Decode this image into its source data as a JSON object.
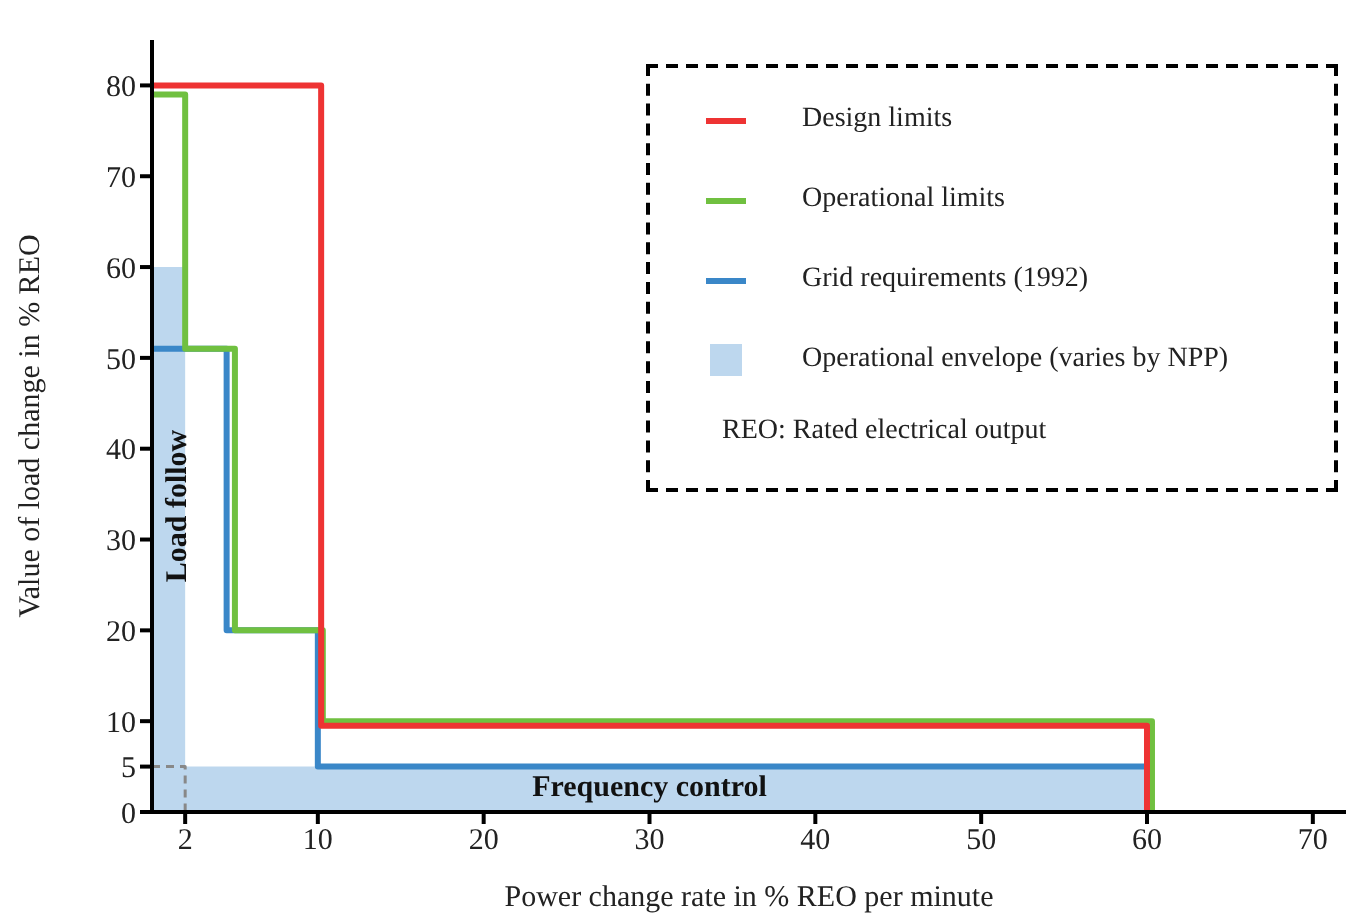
{
  "chart_data": {
    "type": "line",
    "xlabel": "Power change rate in % REO per minute",
    "ylabel": "Value of load change in % REO",
    "xlim": [
      0,
      72
    ],
    "xticks": [
      2,
      10,
      20,
      30,
      40,
      50,
      60,
      70
    ],
    "ylim": [
      0,
      85
    ],
    "yticks": [
      0,
      5,
      10,
      20,
      30,
      40,
      50,
      60,
      70,
      80
    ],
    "legend": "top right",
    "line_style": "solid",
    "marker": "none",
    "series": [
      {
        "name": "Design limits",
        "color": "#ee3333",
        "x": [
          0,
          10.2,
          10.2,
          60,
          60
        ],
        "values": [
          80,
          80,
          9.5,
          9.5,
          0
        ]
      },
      {
        "name": "Operational limits",
        "color": "#70c040",
        "x": [
          0,
          2,
          2,
          5,
          5,
          10.3,
          10.3,
          60.3,
          60.3
        ],
        "values": [
          79,
          79,
          51,
          51,
          20,
          20,
          10,
          10,
          0
        ]
      },
      {
        "name": "Grid requirements (1992)",
        "color": "#3a87c8",
        "x": [
          0,
          4.5,
          4.5,
          10,
          10,
          60
        ],
        "values": [
          51,
          51,
          20,
          20,
          5,
          5
        ]
      },
      {
        "name": "Operational envelope (varies by NPP)",
        "type": "area",
        "color": "#bdd7ee",
        "x": [
          0,
          2,
          2,
          60,
          60
        ],
        "values": [
          60,
          60,
          5,
          5,
          0
        ]
      },
      {
        "line_style": "dashed",
        "color": "#888888",
        "x": [
          0,
          2,
          2
        ],
        "values": [
          5,
          5,
          0
        ]
      }
    ],
    "annotations": [
      "Load follow",
      "Frequency control",
      "REO: Rated electrical output"
    ]
  }
}
